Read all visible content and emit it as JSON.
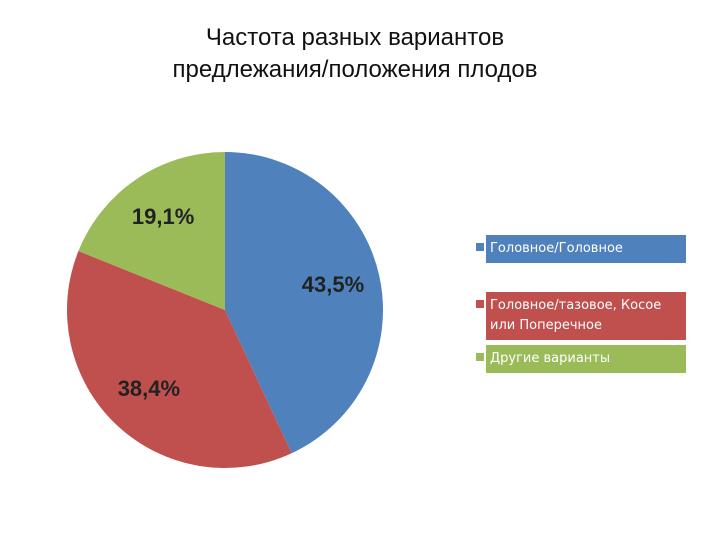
{
  "chart_data": {
    "type": "pie",
    "title": "Частота разных вариантов предлежания/положения плодов",
    "categories": [
      "Головное/Головное",
      "Головное/тазовое, Косое или Поперечное",
      "Другие варианты"
    ],
    "values": [
      43.5,
      38.4,
      19.1
    ],
    "value_labels": [
      "43,5%",
      "38,4%",
      "19,1%"
    ],
    "colors": [
      "#4f81bd",
      "#c0504d",
      "#9bbb59"
    ],
    "legend": "right"
  }
}
